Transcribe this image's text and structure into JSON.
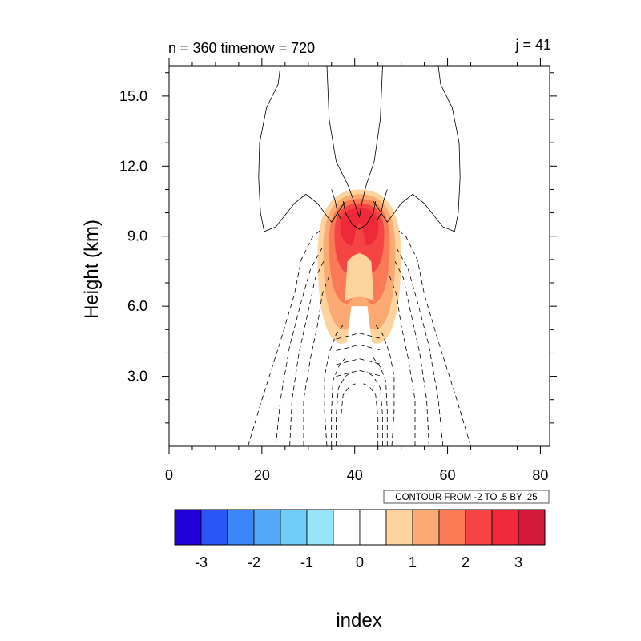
{
  "chart_data": {
    "type": "contour",
    "title_left": "n = 360 timenow = 720",
    "title_right": "j = 41",
    "ylabel": "Height (km)",
    "xlabel": "index",
    "xlim": [
      0,
      82
    ],
    "ylim": [
      0,
      16.3
    ],
    "x_ticks": [
      0,
      20,
      40,
      60,
      80
    ],
    "x_tick_labels": [
      "0",
      "20",
      "40",
      "60",
      "80"
    ],
    "y_ticks": [
      3,
      6,
      9,
      12,
      15
    ],
    "y_tick_labels": [
      "3.0",
      "6.0",
      "9.0",
      "12.0",
      "15.0"
    ],
    "contour_info": "CONTOUR FROM -2 TO .5 BY .25",
    "field": {
      "description": "filled anomaly field, warm plume centred near index 41",
      "center_x": 41,
      "levels_index": [
        1,
        2,
        3,
        4,
        5,
        6
      ]
    },
    "colorbar": {
      "labels": [
        "-3",
        "-2",
        "-1",
        "0",
        "1",
        "2",
        "3"
      ],
      "colors": [
        "#2200d8",
        "#2a55f5",
        "#3c86f7",
        "#55a8f8",
        "#6fcef8",
        "#98e4fb",
        "#ffffff",
        "#ffffff",
        "#fdd49e",
        "#fcaa74",
        "#fb7a56",
        "#f54444",
        "#ee2a3a",
        "#d4183a"
      ]
    }
  }
}
